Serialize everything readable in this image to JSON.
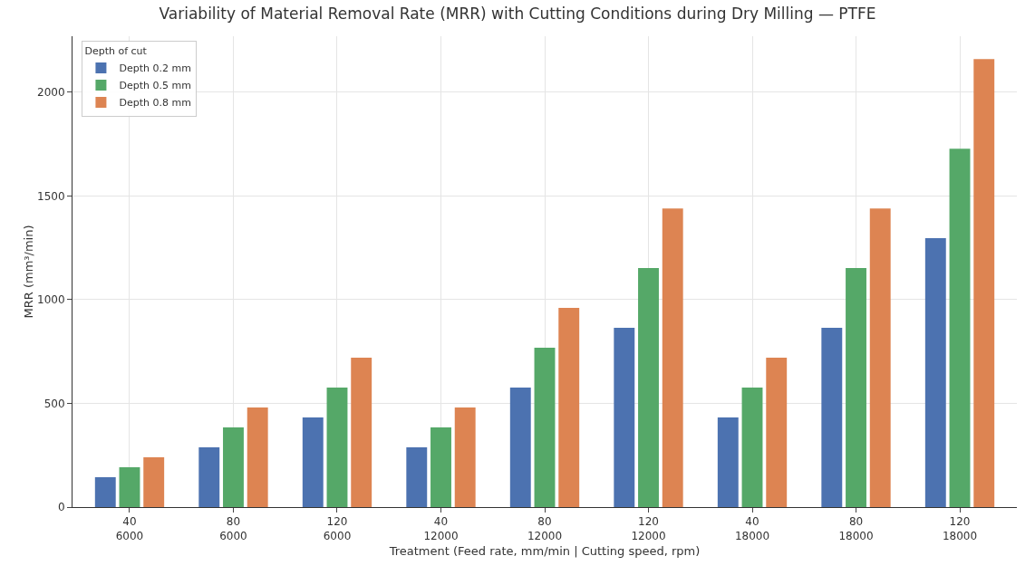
{
  "chart_data": {
    "type": "bar",
    "title": "Variability of Material Removal Rate (MRR) with Cutting Conditions during Dry Milling — PTFE",
    "xlabel": "Treatment (Feed rate, mm/min | Cutting speed, rpm)",
    "ylabel": "MRR (mm³/min)",
    "legend_title": "Depth of cut",
    "categories": [
      "40\n6000",
      "80\n6000",
      "120\n6000",
      "40\n12000",
      "80\n12000",
      "120\n12000",
      "40\n18000",
      "80\n18000",
      "120\n18000"
    ],
    "series": [
      {
        "name": "Depth 0.2 mm",
        "color": "#4c72b0",
        "values": [
          144,
          288,
          432,
          288,
          576,
          864,
          432,
          864,
          1296
        ]
      },
      {
        "name": "Depth 0.5 mm",
        "color": "#55a868",
        "values": [
          192,
          384,
          576,
          384,
          768,
          1152,
          576,
          1152,
          1728
        ]
      },
      {
        "name": "Depth 0.8 mm",
        "color": "#dd8452",
        "values": [
          240,
          480,
          720,
          480,
          960,
          1440,
          720,
          1440,
          2160
        ]
      }
    ],
    "ylim": [
      0,
      2270
    ],
    "yticks": [
      0,
      500,
      1000,
      1500,
      2000
    ],
    "grid": true,
    "legend": "top left"
  }
}
